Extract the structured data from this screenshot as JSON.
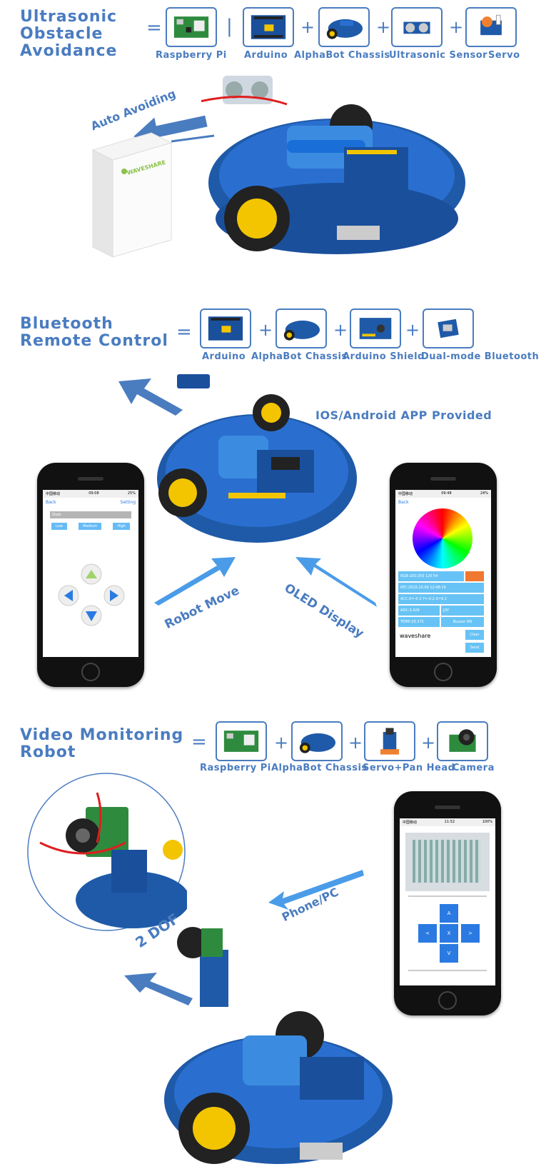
{
  "section1": {
    "title_lines": [
      "Ultrasonic",
      "Obstacle",
      "Avoidance"
    ],
    "equals": "=",
    "separator": "|",
    "plus": "+",
    "components": [
      "Raspberry Pi",
      "Arduino",
      "AlphaBot Chassis",
      "Ultrasonic Sensor",
      "Servo"
    ],
    "annotation": "Auto Avoiding",
    "box_brand": "WAVESHARE"
  },
  "section2": {
    "title_lines": [
      "Bluetooth",
      "Remote Control"
    ],
    "equals": "=",
    "plus": "+",
    "components": [
      "Arduino",
      "AlphaBot Chassis",
      "Arduino Shield",
      "Dual-mode Bluetooth"
    ],
    "app_label": "IOS/Android APP Provided",
    "arrow_left_label": "Robot Move",
    "arrow_right_label": "OLED Display",
    "phone_left": {
      "carrier": "中国移动",
      "time": "09:08",
      "battery": "25%",
      "back": "Back",
      "setting": "Setting",
      "field_value": "Stale",
      "speed_buttons": [
        "Low",
        "Medium",
        "High"
      ]
    },
    "phone_right": {
      "carrier": "中国移动",
      "time": "09:48",
      "battery": "24%",
      "back": "Back",
      "rows": [
        "RGB LED:255 120 54",
        "RTC:2016.10.09 12:48:19",
        "ACC:X=-0.3  Y=-0.2  Z=9.2",
        "ADC:3.426",
        "JOY",
        "TEMP:29.375",
        "Buzzer ON"
      ],
      "input_value": "waveshare",
      "clear": "Clear",
      "send": "Send"
    }
  },
  "section3": {
    "title_lines": [
      "Video Monitoring",
      "Robot"
    ],
    "equals": "=",
    "plus": "+",
    "components": [
      "Raspberry Pi",
      "AlphaBot Chassis",
      "Servo+Pan Head",
      "Camera"
    ],
    "dof_label": "2 DOF",
    "phone_label": "Phone/PC",
    "phone": {
      "carrier": "中国移动",
      "time": "11:52",
      "battery": "100%",
      "dpad": [
        "A",
        "<",
        "X",
        ">",
        "V"
      ]
    }
  },
  "colors": {
    "accent": "#4a7cc0",
    "robot_blue": "#1f5aa8",
    "wheel_yellow": "#f2c500",
    "app_blue": "#67c3f5"
  }
}
